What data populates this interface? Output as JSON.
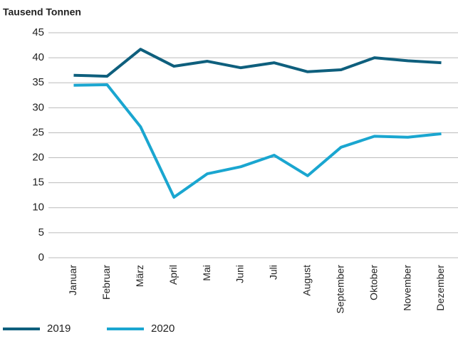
{
  "chart_data": {
    "type": "line",
    "y_label": "Tausend Tonnen",
    "categories": [
      "Januar",
      "Februar",
      "März",
      "April",
      "Mai",
      "Juni",
      "Juli",
      "August",
      "September",
      "Oktober",
      "November",
      "Dezember"
    ],
    "series": [
      {
        "name": "2019",
        "color": "#0e5f7d",
        "values": [
          36.5,
          36.3,
          41.7,
          38.3,
          39.3,
          38.0,
          39.0,
          37.2,
          37.6,
          40.0,
          39.4,
          39.0
        ]
      },
      {
        "name": "2020",
        "color": "#1aa6d0",
        "values": [
          34.5,
          34.6,
          26.2,
          12.1,
          16.8,
          18.2,
          20.5,
          16.4,
          22.1,
          24.3,
          24.1,
          24.8
        ]
      }
    ],
    "ylim": [
      0,
      45
    ],
    "yticks": [
      0,
      5,
      10,
      15,
      20,
      25,
      30,
      35,
      40,
      45
    ],
    "grid": true
  }
}
